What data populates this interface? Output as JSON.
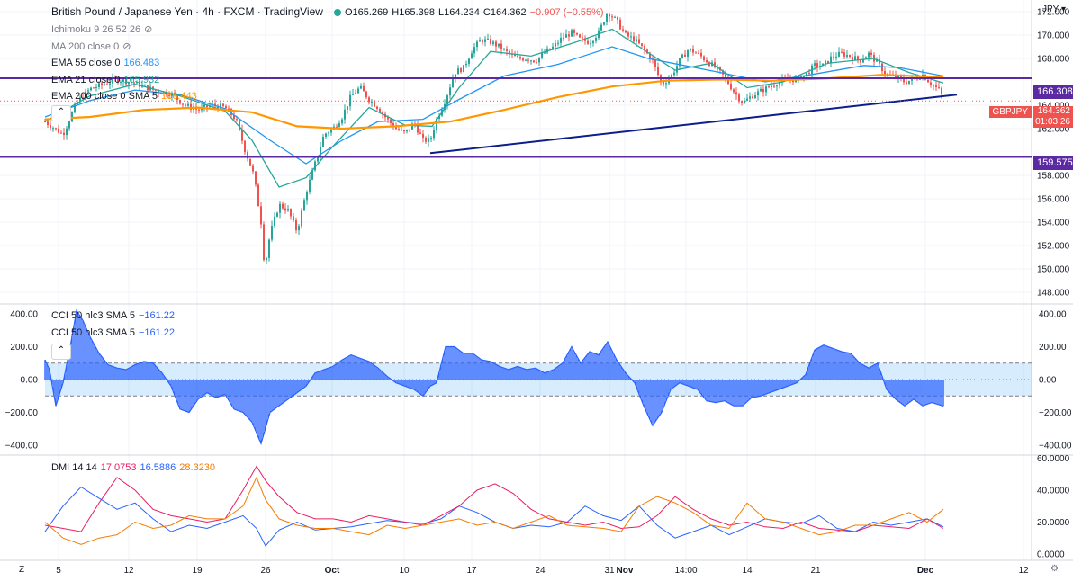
{
  "header": {
    "symbol": "British Pound / Japanese Yen · 4h · FXCM · TradingView",
    "o": "O165.269",
    "h": "H165.398",
    "l": "L164.234",
    "c": "C164.362",
    "chg": "−0.907 (−0.55%)",
    "currency": "JPY"
  },
  "indicators": {
    "ichimoku": "Ichimoku 9 26 52 26",
    "ma200": "MA 200 close 0",
    "ema55": "EMA 55 close 0",
    "ema55_val": "166.483",
    "ema21": "EMA 21 close 0",
    "ema21_val": "165.932",
    "ema200": "EMA 200 close 0 SMA 5",
    "ema200_val": "166.443",
    "cci_a": "CCI 50 hlc3 SMA 5",
    "cci_a_val": "−161.22",
    "cci_b": "CCI 50 hlc3 SMA 5",
    "cci_b_val": "−161.22",
    "dmi": "DMI 14 14",
    "dmi_plus": "17.0753",
    "dmi_minus": "16.5886",
    "adx": "28.3230"
  },
  "price_tags": {
    "upper_line": "166.308",
    "lower_line": "159.575",
    "symbol_tag": "GBPJPY",
    "last": "164.362",
    "countdown": "01:03:26"
  },
  "colors": {
    "up": "#26a69a",
    "down": "#ef5350",
    "ema55": "#2196f3",
    "ema21": "#26a69a",
    "ema200": "#ff9800",
    "hline": "#5b2aa3",
    "trend": "#0b1e8c",
    "cci": "#2962ff",
    "dmi_plus": "#2962ff",
    "dmi_minus": "#e91e63",
    "adx": "#f57c00"
  },
  "chart_data": [
    {
      "type": "candlestick",
      "title": "British Pound / Japanese Yen · 4h · FXCM",
      "ylabel": "JPY",
      "ylim": [
        147,
        173
      ],
      "yticks": [
        148,
        150,
        152,
        154,
        156,
        158,
        162,
        164,
        168,
        170,
        172
      ],
      "ytick_labels": [
        "148.000",
        "150.000",
        "152.000",
        "154.000",
        "156.000",
        "158.000",
        "162.000",
        "164.000",
        "168.000",
        "170.000",
        "172.000"
      ],
      "xticks": [
        "5",
        "12",
        "19",
        "26",
        "Oct",
        "10",
        "17",
        "24",
        "31",
        "Nov",
        "14:00",
        "14",
        "21",
        "Dec",
        "12"
      ],
      "hlines": [
        166.308,
        159.575
      ],
      "trendline": {
        "from": [
          478,
          159.9
        ],
        "to": [
          1063,
          164.9
        ]
      },
      "close_path": [
        [
          50,
          162.6
        ],
        [
          70,
          161.5
        ],
        [
          85,
          164.2
        ],
        [
          100,
          165.4
        ],
        [
          115,
          165.8
        ],
        [
          130,
          166.2
        ],
        [
          145,
          166.0
        ],
        [
          160,
          165.6
        ],
        [
          175,
          165.2
        ],
        [
          190,
          165.0
        ],
        [
          205,
          164.0
        ],
        [
          220,
          163.6
        ],
        [
          235,
          164.0
        ],
        [
          250,
          163.8
        ],
        [
          262,
          162.8
        ],
        [
          272,
          160.2
        ],
        [
          282,
          158.0
        ],
        [
          290,
          154.0
        ],
        [
          294,
          150.0
        ],
        [
          300,
          153.0
        ],
        [
          310,
          155.5
        ],
        [
          320,
          155.0
        ],
        [
          330,
          153.2
        ],
        [
          340,
          156.5
        ],
        [
          350,
          159.0
        ],
        [
          360,
          161.5
        ],
        [
          370,
          162.0
        ],
        [
          380,
          163.0
        ],
        [
          390,
          164.8
        ],
        [
          400,
          165.5
        ],
        [
          410,
          164.5
        ],
        [
          420,
          163.8
        ],
        [
          430,
          162.8
        ],
        [
          440,
          162.0
        ],
        [
          450,
          161.6
        ],
        [
          460,
          162.5
        ],
        [
          470,
          161.0
        ],
        [
          478,
          161.0
        ],
        [
          485,
          162.8
        ],
        [
          495,
          164.5
        ],
        [
          505,
          166.8
        ],
        [
          515,
          167.2
        ],
        [
          525,
          168.8
        ],
        [
          535,
          169.6
        ],
        [
          545,
          169.4
        ],
        [
          555,
          169.0
        ],
        [
          565,
          168.4
        ],
        [
          575,
          168.0
        ],
        [
          585,
          168.0
        ],
        [
          595,
          167.8
        ],
        [
          605,
          168.5
        ],
        [
          615,
          169.0
        ],
        [
          625,
          169.8
        ],
        [
          635,
          170.2
        ],
        [
          645,
          169.6
        ],
        [
          655,
          169.4
        ],
        [
          665,
          170.2
        ],
        [
          675,
          172.0
        ],
        [
          685,
          171.2
        ],
        [
          695,
          170.0
        ],
        [
          705,
          169.6
        ],
        [
          715,
          168.8
        ],
        [
          725,
          167.8
        ],
        [
          735,
          165.8
        ],
        [
          745,
          166.4
        ],
        [
          755,
          167.8
        ],
        [
          765,
          168.8
        ],
        [
          775,
          168.4
        ],
        [
          785,
          167.8
        ],
        [
          795,
          167.2
        ],
        [
          805,
          166.4
        ],
        [
          815,
          165.2
        ],
        [
          825,
          164.2
        ],
        [
          835,
          164.8
        ],
        [
          845,
          165.2
        ],
        [
          855,
          165.6
        ],
        [
          865,
          166.0
        ],
        [
          875,
          166.2
        ],
        [
          885,
          166.2
        ],
        [
          895,
          166.6
        ],
        [
          905,
          167.4
        ],
        [
          915,
          167.4
        ],
        [
          925,
          168.2
        ],
        [
          935,
          168.4
        ],
        [
          945,
          168.2
        ],
        [
          955,
          167.8
        ],
        [
          965,
          168.4
        ],
        [
          975,
          167.6
        ],
        [
          985,
          166.6
        ],
        [
          995,
          166.4
        ],
        [
          1005,
          166.0
        ],
        [
          1015,
          166.2
        ],
        [
          1025,
          166.6
        ],
        [
          1035,
          165.8
        ],
        [
          1045,
          165.2
        ],
        [
          1048,
          164.362
        ]
      ],
      "series": [
        {
          "name": "EMA 55 close 0",
          "points": [
            [
              50,
              163.0
            ],
            [
              100,
              164.4
            ],
            [
              150,
              165.3
            ],
            [
              200,
              164.9
            ],
            [
              250,
              163.7
            ],
            [
              300,
              161.0
            ],
            [
              340,
              159.0
            ],
            [
              380,
              161.0
            ],
            [
              420,
              162.6
            ],
            [
              470,
              162.8
            ],
            [
              510,
              164.5
            ],
            [
              560,
              166.5
            ],
            [
              620,
              167.5
            ],
            [
              680,
              169.0
            ],
            [
              720,
              168.0
            ],
            [
              760,
              167.4
            ],
            [
              800,
              166.8
            ],
            [
              850,
              166.0
            ],
            [
              900,
              166.6
            ],
            [
              960,
              167.4
            ],
            [
              1000,
              167.2
            ],
            [
              1048,
              166.5
            ]
          ]
        },
        {
          "name": "EMA 21 close 0",
          "points": [
            [
              50,
              162.6
            ],
            [
              100,
              164.8
            ],
            [
              150,
              165.8
            ],
            [
              200,
              164.8
            ],
            [
              250,
              163.5
            ],
            [
              280,
              161.0
            ],
            [
              310,
              157.0
            ],
            [
              340,
              157.8
            ],
            [
              370,
              160.5
            ],
            [
              410,
              163.8
            ],
            [
              450,
              162.3
            ],
            [
              480,
              162.2
            ],
            [
              510,
              165.5
            ],
            [
              545,
              168.6
            ],
            [
              590,
              168.2
            ],
            [
              640,
              169.4
            ],
            [
              680,
              170.5
            ],
            [
              720,
              168.5
            ],
            [
              750,
              167.0
            ],
            [
              790,
              167.6
            ],
            [
              830,
              165.5
            ],
            [
              870,
              166.0
            ],
            [
              920,
              167.6
            ],
            [
              970,
              168.0
            ],
            [
              1010,
              166.8
            ],
            [
              1048,
              165.9
            ]
          ]
        },
        {
          "name": "EMA 200 close 0 SMA 5",
          "points": [
            [
              50,
              162.8
            ],
            [
              100,
              163.0
            ],
            [
              160,
              163.6
            ],
            [
              220,
              163.8
            ],
            [
              280,
              163.4
            ],
            [
              330,
              162.2
            ],
            [
              380,
              162.0
            ],
            [
              440,
              162.2
            ],
            [
              500,
              162.6
            ],
            [
              560,
              163.6
            ],
            [
              620,
              164.7
            ],
            [
              680,
              165.6
            ],
            [
              740,
              166.1
            ],
            [
              800,
              166.2
            ],
            [
              860,
              166.1
            ],
            [
              920,
              166.3
            ],
            [
              980,
              166.6
            ],
            [
              1048,
              166.4
            ]
          ]
        }
      ]
    },
    {
      "type": "area",
      "title": "CCI 50 hlc3 SMA 5",
      "ylim": [
        -460,
        460
      ],
      "yticks": [
        400,
        200,
        0,
        -200,
        -400
      ],
      "ytick_labels": [
        "400.00",
        "200.00",
        "0.00",
        "−200.00",
        "−400.00"
      ],
      "band": [
        100,
        -100
      ],
      "x": [
        50,
        55,
        62,
        70,
        78,
        85,
        92,
        100,
        110,
        120,
        130,
        140,
        150,
        160,
        170,
        180,
        190,
        200,
        210,
        220,
        230,
        240,
        250,
        260,
        270,
        280,
        290,
        300,
        310,
        320,
        330,
        340,
        350,
        360,
        370,
        380,
        390,
        400,
        410,
        420,
        430,
        440,
        450,
        460,
        470,
        478,
        485,
        495,
        505,
        515,
        525,
        535,
        545,
        555,
        565,
        575,
        585,
        595,
        605,
        615,
        625,
        635,
        645,
        655,
        665,
        675,
        685,
        695,
        705,
        715,
        725,
        735,
        745,
        755,
        765,
        775,
        785,
        795,
        805,
        815,
        825,
        835,
        845,
        855,
        865,
        875,
        885,
        895,
        905,
        915,
        925,
        935,
        945,
        955,
        965,
        975,
        985,
        995,
        1005,
        1015,
        1025,
        1035,
        1048
      ],
      "values": [
        120,
        60,
        -160,
        -20,
        200,
        420,
        360,
        260,
        160,
        90,
        70,
        60,
        90,
        110,
        100,
        40,
        -40,
        -180,
        -200,
        -120,
        -80,
        -110,
        -90,
        -180,
        -200,
        -260,
        -390,
        -200,
        -160,
        -120,
        -80,
        -40,
        40,
        60,
        80,
        120,
        150,
        130,
        110,
        70,
        20,
        -20,
        -40,
        -60,
        -100,
        -40,
        -20,
        200,
        200,
        160,
        160,
        120,
        110,
        80,
        60,
        80,
        60,
        70,
        40,
        60,
        100,
        200,
        100,
        170,
        150,
        230,
        120,
        40,
        -20,
        -160,
        -280,
        -200,
        -60,
        -20,
        -40,
        -60,
        -130,
        -140,
        -130,
        -160,
        -160,
        -110,
        -100,
        -80,
        -60,
        -40,
        -20,
        30,
        180,
        210,
        190,
        170,
        160,
        100,
        70,
        100,
        -60,
        -120,
        -160,
        -120,
        -160,
        -140,
        -161
      ]
    },
    {
      "type": "line",
      "title": "DMI 14 14",
      "ylim": [
        -4,
        62
      ],
      "yticks": [
        60,
        40,
        20,
        0
      ],
      "ytick_labels": [
        "60.0000",
        "40.0000",
        "20.0000",
        "0.0000"
      ],
      "x": [
        50,
        70,
        90,
        110,
        130,
        150,
        170,
        190,
        210,
        230,
        250,
        270,
        285,
        295,
        310,
        330,
        350,
        370,
        390,
        410,
        430,
        450,
        470,
        490,
        510,
        530,
        550,
        570,
        590,
        610,
        630,
        650,
        670,
        690,
        710,
        730,
        750,
        770,
        790,
        810,
        830,
        850,
        870,
        890,
        910,
        930,
        950,
        970,
        990,
        1010,
        1030,
        1048
      ],
      "series": [
        {
          "name": "17.0753",
          "values": [
            14,
            30,
            42,
            35,
            28,
            32,
            22,
            14,
            18,
            16,
            20,
            24,
            16,
            5,
            15,
            20,
            15,
            16,
            17,
            19,
            21,
            20,
            19,
            22,
            30,
            26,
            20,
            16,
            18,
            17,
            20,
            30,
            24,
            21,
            30,
            18,
            10,
            14,
            18,
            12,
            17,
            22,
            20,
            19,
            24,
            16,
            14,
            20,
            18,
            20,
            22,
            17
          ]
        },
        {
          "name": "16.5886",
          "values": [
            18,
            16,
            14,
            32,
            48,
            40,
            28,
            24,
            22,
            20,
            22,
            40,
            55,
            46,
            36,
            26,
            22,
            22,
            20,
            24,
            22,
            20,
            18,
            24,
            30,
            40,
            44,
            38,
            28,
            22,
            20,
            18,
            20,
            16,
            17,
            24,
            36,
            28,
            22,
            18,
            20,
            17,
            16,
            20,
            16,
            15,
            14,
            18,
            17,
            16,
            22,
            16
          ]
        },
        {
          "name": "28.3230",
          "values": [
            20,
            10,
            6,
            10,
            12,
            20,
            16,
            18,
            24,
            22,
            22,
            30,
            48,
            34,
            22,
            18,
            16,
            16,
            14,
            12,
            18,
            16,
            18,
            20,
            22,
            18,
            20,
            16,
            20,
            24,
            18,
            17,
            16,
            14,
            30,
            36,
            32,
            26,
            18,
            16,
            32,
            22,
            20,
            16,
            12,
            14,
            18,
            18,
            22,
            26,
            20,
            28
          ]
        }
      ]
    }
  ],
  "time_axis": {
    "labels": [
      "5",
      "12",
      "19",
      "26",
      "Oct",
      "10",
      "17",
      "24",
      "31",
      "Nov",
      "14:00",
      "14",
      "21",
      "Dec",
      "12"
    ],
    "bold": [
      "Oct",
      "Nov",
      "Dec"
    ]
  }
}
